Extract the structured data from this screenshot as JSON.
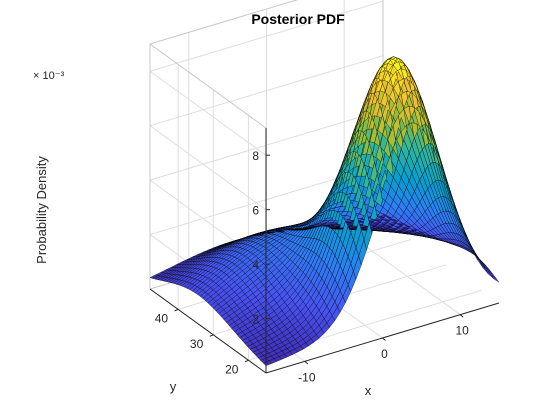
{
  "chart_data": {
    "type": "surface3d",
    "title": "Posterior PDF",
    "xlabel": "x",
    "ylabel": "y",
    "zlabel": "Probability Density",
    "z_exponent_label": "× 10⁻³",
    "xlim": [
      -15,
      15
    ],
    "ylim": [
      15,
      48
    ],
    "zlim": [
      0,
      0.009
    ],
    "x_ticks": [
      {
        "value": -10,
        "label": "-10"
      },
      {
        "value": 0,
        "label": "0"
      },
      {
        "value": 10,
        "label": "10"
      }
    ],
    "y_ticks": [
      {
        "value": 20,
        "label": "20"
      },
      {
        "value": 30,
        "label": "30"
      },
      {
        "value": 40,
        "label": "40"
      }
    ],
    "z_ticks": [
      {
        "value": 0.002,
        "label": "2"
      },
      {
        "value": 0.004,
        "label": "4"
      },
      {
        "value": 0.006,
        "label": "6"
      },
      {
        "value": 0.008,
        "label": "8"
      }
    ],
    "grid": true,
    "colormap": "parula",
    "edge_color": "#000000",
    "peaks": [
      {
        "x": 4,
        "y": 20,
        "z": 0.0086
      },
      {
        "x": -5,
        "y": 36,
        "z": 0.0015
      }
    ]
  }
}
